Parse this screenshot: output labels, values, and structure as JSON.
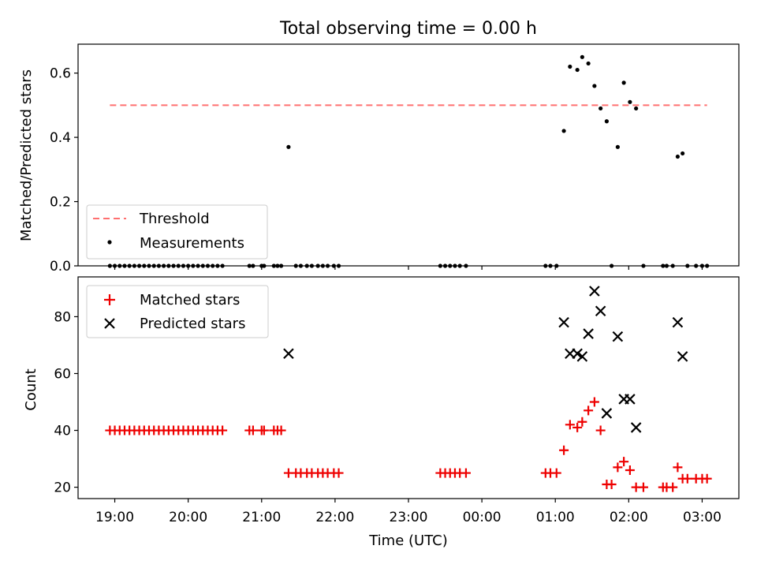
{
  "title": "Total observing time = 0.00 h",
  "colors": {
    "threshold": "#ff7070",
    "measurement": "#000000",
    "matched": "#ee0000",
    "predicted": "#000000",
    "axes": "#000000",
    "background": "#ffffff"
  },
  "chart_data": [
    {
      "type": "scatter",
      "ylabel": "Matched/Predicted stars",
      "xlabel": "",
      "xlim": [
        "18:30",
        "03:30"
      ],
      "ylim": [
        0,
        0.69
      ],
      "yticks": [
        0.0,
        0.2,
        0.4,
        0.6
      ],
      "ytick_labels": [
        "0.0",
        "0.2",
        "0.4",
        "0.6"
      ],
      "xticks": [
        "19:00",
        "20:00",
        "21:00",
        "22:00",
        "23:00",
        "00:00",
        "01:00",
        "02:00",
        "03:00"
      ],
      "show_xtick_labels": false,
      "grid": false,
      "legend": {
        "location": "lower left",
        "entries": [
          "Threshold",
          "Measurements"
        ]
      },
      "threshold": {
        "name": "Threshold",
        "value": 0.5,
        "x_start": "18:56",
        "x_end": "03:04",
        "style": "dashed"
      },
      "measurements": {
        "name": "Measurements",
        "points": [
          [
            "18:56",
            0.0
          ],
          [
            "19:00",
            0.0
          ],
          [
            "19:04",
            0.0
          ],
          [
            "19:08",
            0.0
          ],
          [
            "19:12",
            0.0
          ],
          [
            "19:16",
            0.0
          ],
          [
            "19:20",
            0.0
          ],
          [
            "19:24",
            0.0
          ],
          [
            "19:28",
            0.0
          ],
          [
            "19:32",
            0.0
          ],
          [
            "19:36",
            0.0
          ],
          [
            "19:40",
            0.0
          ],
          [
            "19:44",
            0.0
          ],
          [
            "19:48",
            0.0
          ],
          [
            "19:52",
            0.0
          ],
          [
            "19:56",
            0.0
          ],
          [
            "20:00",
            0.0
          ],
          [
            "20:04",
            0.0
          ],
          [
            "20:08",
            0.0
          ],
          [
            "20:12",
            0.0
          ],
          [
            "20:16",
            0.0
          ],
          [
            "20:20",
            0.0
          ],
          [
            "20:24",
            0.0
          ],
          [
            "20:28",
            0.0
          ],
          [
            "20:50",
            0.0
          ],
          [
            "20:53",
            0.0
          ],
          [
            "21:00",
            0.0
          ],
          [
            "21:02",
            0.0
          ],
          [
            "21:10",
            0.0
          ],
          [
            "21:13",
            0.0
          ],
          [
            "21:16",
            0.0
          ],
          [
            "21:22",
            0.37
          ],
          [
            "21:28",
            0.0
          ],
          [
            "21:32",
            0.0
          ],
          [
            "21:37",
            0.0
          ],
          [
            "21:41",
            0.0
          ],
          [
            "21:46",
            0.0
          ],
          [
            "21:50",
            0.0
          ],
          [
            "21:54",
            0.0
          ],
          [
            "21:59",
            0.0
          ],
          [
            "22:03",
            0.0
          ],
          [
            "23:26",
            0.0
          ],
          [
            "23:30",
            0.0
          ],
          [
            "23:34",
            0.0
          ],
          [
            "23:38",
            0.0
          ],
          [
            "23:42",
            0.0
          ],
          [
            "23:47",
            0.0
          ],
          [
            "00:52",
            0.0
          ],
          [
            "00:56",
            0.0
          ],
          [
            "01:01",
            0.0
          ],
          [
            "01:07",
            0.42
          ],
          [
            "01:12",
            0.62
          ],
          [
            "01:18",
            0.61
          ],
          [
            "01:22",
            0.65
          ],
          [
            "01:27",
            0.63
          ],
          [
            "01:32",
            0.56
          ],
          [
            "01:37",
            0.49
          ],
          [
            "01:42",
            0.45
          ],
          [
            "01:46",
            0.0
          ],
          [
            "01:51",
            0.37
          ],
          [
            "01:56",
            0.57
          ],
          [
            "02:01",
            0.51
          ],
          [
            "02:06",
            0.49
          ],
          [
            "02:12",
            0.0
          ],
          [
            "02:28",
            0.0
          ],
          [
            "02:31",
            0.0
          ],
          [
            "02:36",
            0.0
          ],
          [
            "02:40",
            0.34
          ],
          [
            "02:44",
            0.35
          ],
          [
            "02:48",
            0.0
          ],
          [
            "02:55",
            0.0
          ],
          [
            "03:00",
            0.0
          ],
          [
            "03:04",
            0.0
          ]
        ]
      }
    },
    {
      "type": "scatter",
      "xlabel": "Time (UTC)",
      "ylabel": "Count",
      "xlim": [
        "18:30",
        "03:30"
      ],
      "ylim": [
        16,
        94
      ],
      "yticks": [
        20,
        40,
        60,
        80
      ],
      "ytick_labels": [
        "20",
        "40",
        "60",
        "80"
      ],
      "xticks": [
        "19:00",
        "20:00",
        "21:00",
        "22:00",
        "23:00",
        "00:00",
        "01:00",
        "02:00",
        "03:00"
      ],
      "xtick_labels": [
        "19:00",
        "20:00",
        "21:00",
        "22:00",
        "23:00",
        "00:00",
        "01:00",
        "02:00",
        "03:00"
      ],
      "grid": false,
      "legend": {
        "location": "upper left",
        "entries": [
          "Matched stars",
          "Predicted stars"
        ]
      },
      "series": [
        {
          "name": "Matched stars",
          "marker": "plus",
          "points": [
            [
              "18:56",
              40
            ],
            [
              "19:00",
              40
            ],
            [
              "19:04",
              40
            ],
            [
              "19:08",
              40
            ],
            [
              "19:12",
              40
            ],
            [
              "19:16",
              40
            ],
            [
              "19:20",
              40
            ],
            [
              "19:24",
              40
            ],
            [
              "19:28",
              40
            ],
            [
              "19:32",
              40
            ],
            [
              "19:36",
              40
            ],
            [
              "19:40",
              40
            ],
            [
              "19:44",
              40
            ],
            [
              "19:48",
              40
            ],
            [
              "19:52",
              40
            ],
            [
              "19:56",
              40
            ],
            [
              "20:00",
              40
            ],
            [
              "20:04",
              40
            ],
            [
              "20:08",
              40
            ],
            [
              "20:12",
              40
            ],
            [
              "20:16",
              40
            ],
            [
              "20:20",
              40
            ],
            [
              "20:24",
              40
            ],
            [
              "20:28",
              40
            ],
            [
              "20:50",
              40
            ],
            [
              "20:53",
              40
            ],
            [
              "21:00",
              40
            ],
            [
              "21:02",
              40
            ],
            [
              "21:10",
              40
            ],
            [
              "21:13",
              40
            ],
            [
              "21:16",
              40
            ],
            [
              "21:22",
              25
            ],
            [
              "21:28",
              25
            ],
            [
              "21:32",
              25
            ],
            [
              "21:37",
              25
            ],
            [
              "21:41",
              25
            ],
            [
              "21:46",
              25
            ],
            [
              "21:50",
              25
            ],
            [
              "21:54",
              25
            ],
            [
              "21:59",
              25
            ],
            [
              "22:03",
              25
            ],
            [
              "23:26",
              25
            ],
            [
              "23:30",
              25
            ],
            [
              "23:34",
              25
            ],
            [
              "23:38",
              25
            ],
            [
              "23:42",
              25
            ],
            [
              "23:47",
              25
            ],
            [
              "00:52",
              25
            ],
            [
              "00:56",
              25
            ],
            [
              "01:01",
              25
            ],
            [
              "01:07",
              33
            ],
            [
              "01:12",
              42
            ],
            [
              "01:18",
              41
            ],
            [
              "01:22",
              43
            ],
            [
              "01:27",
              47
            ],
            [
              "01:32",
              50
            ],
            [
              "01:37",
              40
            ],
            [
              "01:42",
              21
            ],
            [
              "01:46",
              21
            ],
            [
              "01:51",
              27
            ],
            [
              "01:56",
              29
            ],
            [
              "02:01",
              26
            ],
            [
              "02:06",
              20
            ],
            [
              "02:12",
              20
            ],
            [
              "02:28",
              20
            ],
            [
              "02:31",
              20
            ],
            [
              "02:36",
              20
            ],
            [
              "02:40",
              27
            ],
            [
              "02:44",
              23
            ],
            [
              "02:48",
              23
            ],
            [
              "02:55",
              23
            ],
            [
              "03:00",
              23
            ],
            [
              "03:04",
              23
            ]
          ]
        },
        {
          "name": "Predicted stars",
          "marker": "x",
          "points": [
            [
              "21:22",
              67
            ],
            [
              "01:07",
              78
            ],
            [
              "01:12",
              67
            ],
            [
              "01:18",
              67
            ],
            [
              "01:22",
              66
            ],
            [
              "01:27",
              74
            ],
            [
              "01:32",
              89
            ],
            [
              "01:37",
              82
            ],
            [
              "01:42",
              46
            ],
            [
              "01:51",
              73
            ],
            [
              "01:56",
              51
            ],
            [
              "02:01",
              51
            ],
            [
              "02:06",
              41
            ],
            [
              "02:40",
              78
            ],
            [
              "02:44",
              66
            ]
          ]
        }
      ]
    }
  ]
}
